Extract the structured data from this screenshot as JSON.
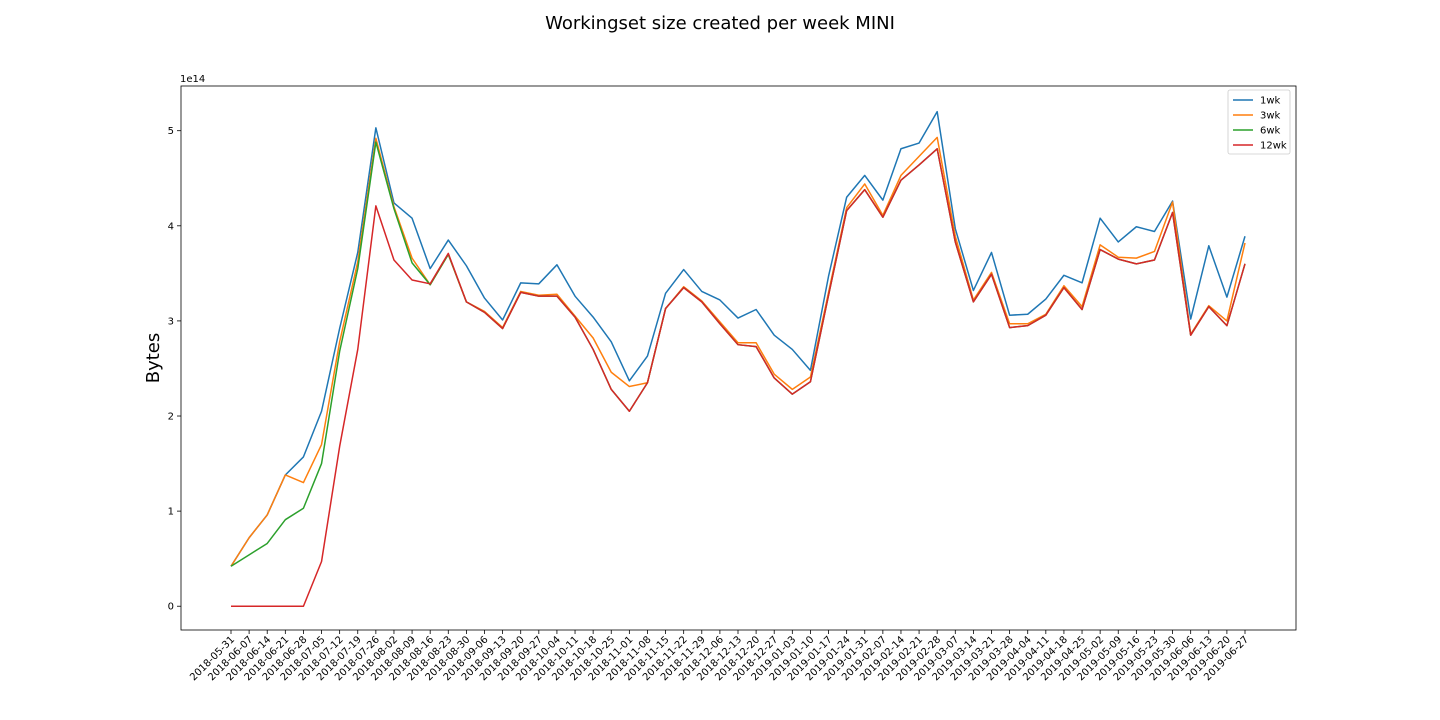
{
  "chart_data": {
    "type": "line",
    "title": "Workingset size created per week MINI",
    "xlabel": "",
    "ylabel": "Bytes",
    "y_scale_label": "1e14",
    "ylim": [
      -0.25,
      5.47
    ],
    "yticks": [
      0,
      1,
      2,
      3,
      4,
      5
    ],
    "ytick_labels": [
      "0",
      "1",
      "2",
      "3",
      "4",
      "5"
    ],
    "grid": false,
    "legend_position": "upper right",
    "categories": [
      "2018-05-31",
      "2018-06-07",
      "2018-06-14",
      "2018-06-21",
      "2018-06-28",
      "2018-07-05",
      "2018-07-12",
      "2018-07-19",
      "2018-07-26",
      "2018-08-02",
      "2018-08-09",
      "2018-08-16",
      "2018-08-23",
      "2018-08-30",
      "2018-09-06",
      "2018-09-13",
      "2018-09-20",
      "2018-09-27",
      "2018-10-04",
      "2018-10-11",
      "2018-10-18",
      "2018-10-25",
      "2018-11-01",
      "2018-11-08",
      "2018-11-15",
      "2018-11-22",
      "2018-11-29",
      "2018-12-06",
      "2018-12-13",
      "2018-12-20",
      "2018-12-27",
      "2019-01-03",
      "2019-01-10",
      "2019-01-17",
      "2019-01-24",
      "2019-01-31",
      "2019-02-07",
      "2019-02-14",
      "2019-02-21",
      "2019-02-28",
      "2019-03-07",
      "2019-03-14",
      "2019-03-21",
      "2019-03-28",
      "2019-04-04",
      "2019-04-11",
      "2019-04-18",
      "2019-04-25",
      "2019-05-02",
      "2019-05-09",
      "2019-05-16",
      "2019-05-23",
      "2019-05-30",
      "2019-06-06",
      "2019-06-13",
      "2019-06-20",
      "2019-06-27"
    ],
    "series": [
      {
        "name": "1wk",
        "color": "#1f77b4",
        "values": [
          0.42,
          0.72,
          0.96,
          1.38,
          1.57,
          2.05,
          2.92,
          3.72,
          5.03,
          4.24,
          4.08,
          3.55,
          3.85,
          3.58,
          3.24,
          3.01,
          3.4,
          3.39,
          3.59,
          3.26,
          3.04,
          2.78,
          2.37,
          2.63,
          3.29,
          3.54,
          3.31,
          3.22,
          3.03,
          3.12,
          2.85,
          2.7,
          2.48,
          3.47,
          4.3,
          4.53,
          4.27,
          4.81,
          4.87,
          5.2,
          3.97,
          3.32,
          3.72,
          3.06,
          3.07,
          3.23,
          3.48,
          3.4,
          4.08,
          3.83,
          3.99,
          3.94,
          4.26,
          3.02,
          3.79,
          3.25,
          3.89
        ]
      },
      {
        "name": "3wk",
        "color": "#ff7f0e",
        "values": [
          0.42,
          0.72,
          0.96,
          1.38,
          1.3,
          1.7,
          2.78,
          3.62,
          4.92,
          4.2,
          3.66,
          3.38,
          3.7,
          3.2,
          3.1,
          2.93,
          3.31,
          3.27,
          3.28,
          3.05,
          2.82,
          2.46,
          2.31,
          2.35,
          3.13,
          3.36,
          3.21,
          2.99,
          2.77,
          2.77,
          2.44,
          2.28,
          2.41,
          3.3,
          4.19,
          4.44,
          4.11,
          4.53,
          4.73,
          4.93,
          3.89,
          3.22,
          3.51,
          2.97,
          2.97,
          3.07,
          3.37,
          3.15,
          3.8,
          3.67,
          3.66,
          3.73,
          4.25,
          2.86,
          3.16,
          3.0,
          3.82
        ]
      },
      {
        "name": "6wk",
        "color": "#2ca02c",
        "values": [
          0.42,
          0.54,
          0.66,
          0.91,
          1.03,
          1.5,
          2.68,
          3.55,
          4.88,
          4.18,
          3.61,
          3.38,
          3.7,
          3.2,
          3.09,
          2.92,
          3.3,
          3.26,
          3.26,
          3.04,
          2.7,
          2.28,
          2.05,
          2.35,
          3.13,
          3.35,
          3.2,
          2.97,
          2.75,
          2.73,
          2.4,
          2.23,
          2.36,
          3.27,
          4.16,
          4.38,
          4.09,
          4.48,
          4.64,
          4.81,
          3.83,
          3.2,
          3.49,
          2.93,
          2.95,
          3.06,
          3.35,
          3.12,
          3.75,
          3.65,
          3.6,
          3.64,
          4.14,
          2.85,
          3.15,
          2.95,
          3.6
        ]
      },
      {
        "name": "12wk",
        "color": "#d62728",
        "values": [
          0.0,
          0.0,
          0.0,
          0.0,
          0.0,
          0.47,
          1.68,
          2.7,
          4.21,
          3.64,
          3.43,
          3.39,
          3.71,
          3.2,
          3.09,
          2.92,
          3.3,
          3.26,
          3.26,
          3.04,
          2.7,
          2.28,
          2.05,
          2.35,
          3.13,
          3.35,
          3.2,
          2.97,
          2.75,
          2.73,
          2.4,
          2.23,
          2.36,
          3.27,
          4.16,
          4.38,
          4.09,
          4.48,
          4.64,
          4.81,
          3.83,
          3.2,
          3.49,
          2.93,
          2.95,
          3.06,
          3.35,
          3.12,
          3.75,
          3.65,
          3.6,
          3.64,
          4.14,
          2.85,
          3.15,
          2.95,
          3.6
        ]
      }
    ]
  }
}
